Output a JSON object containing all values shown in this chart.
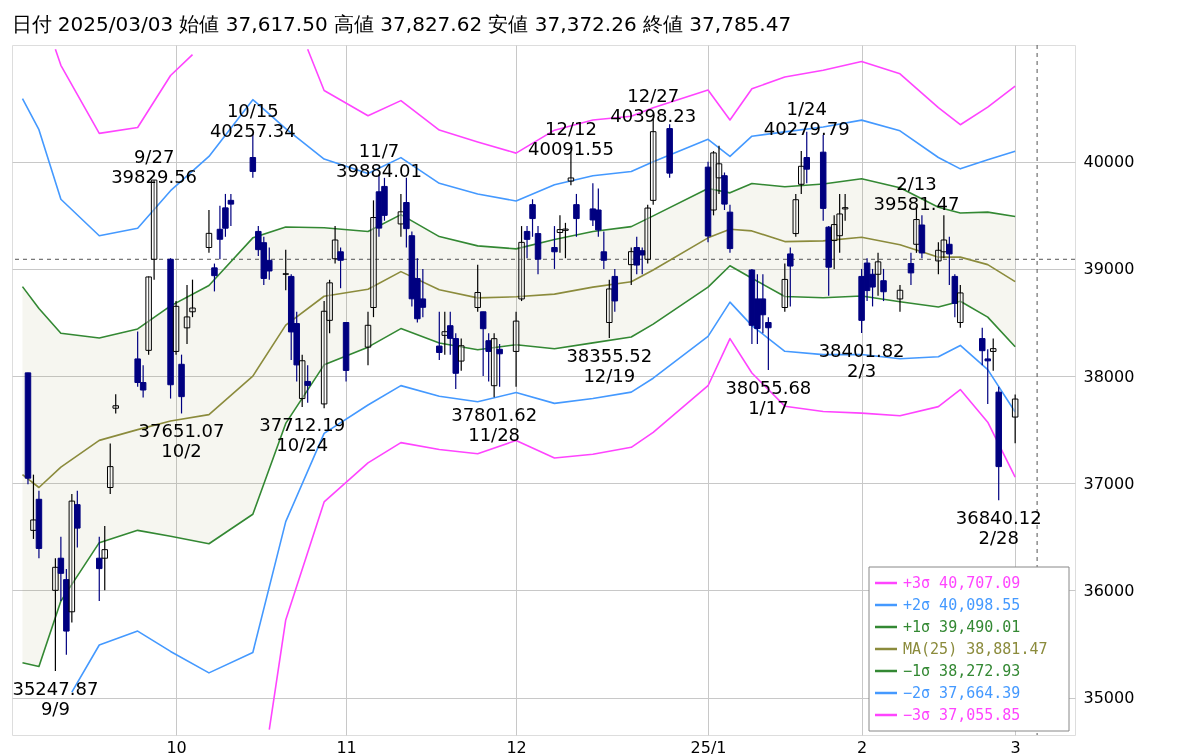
{
  "chart_data": {
    "type": "candlestick",
    "title": "日付 2025/03/03  始値 37,617.50  高値 37,827.62  安値 37,372.26  終値 37,785.47",
    "x": [
      "2024-09-04",
      "2024-09-05",
      "2024-09-06",
      "2024-09-09",
      "2024-09-10",
      "2024-09-11",
      "2024-09-12",
      "2024-09-13",
      "2024-09-17",
      "2024-09-18",
      "2024-09-19",
      "2024-09-20",
      "2024-09-24",
      "2024-09-25",
      "2024-09-26",
      "2024-09-27",
      "2024-09-30",
      "2024-10-01",
      "2024-10-02",
      "2024-10-03",
      "2024-10-04",
      "2024-10-07",
      "2024-10-08",
      "2024-10-09",
      "2024-10-10",
      "2024-10-11",
      "2024-10-15",
      "2024-10-16",
      "2024-10-17",
      "2024-10-18",
      "2024-10-21",
      "2024-10-22",
      "2024-10-23",
      "2024-10-24",
      "2024-10-25",
      "2024-10-28",
      "2024-10-29",
      "2024-10-30",
      "2024-10-31",
      "2024-11-01",
      "2024-11-05",
      "2024-11-06",
      "2024-11-07",
      "2024-11-08",
      "2024-11-11",
      "2024-11-12",
      "2024-11-13",
      "2024-11-14",
      "2024-11-15",
      "2024-11-18",
      "2024-11-19",
      "2024-11-20",
      "2024-11-21",
      "2024-11-22",
      "2024-11-25",
      "2024-11-26",
      "2024-11-27",
      "2024-11-28",
      "2024-11-29",
      "2024-12-02",
      "2024-12-03",
      "2024-12-04",
      "2024-12-05",
      "2024-12-06",
      "2024-12-09",
      "2024-12-10",
      "2024-12-11",
      "2024-12-12",
      "2024-12-13",
      "2024-12-16",
      "2024-12-17",
      "2024-12-18",
      "2024-12-19",
      "2024-12-20",
      "2024-12-23",
      "2024-12-24",
      "2024-12-25",
      "2024-12-26",
      "2024-12-27",
      "2024-12-30",
      "2025-01-06",
      "2025-01-07",
      "2025-01-08",
      "2025-01-09",
      "2025-01-10",
      "2025-01-14",
      "2025-01-15",
      "2025-01-16",
      "2025-01-17",
      "2025-01-20",
      "2025-01-21",
      "2025-01-22",
      "2025-01-23",
      "2025-01-24",
      "2025-01-27",
      "2025-01-28",
      "2025-01-29",
      "2025-01-30",
      "2025-01-31",
      "2025-02-03",
      "2025-02-04",
      "2025-02-05",
      "2025-02-06",
      "2025-02-07",
      "2025-02-10",
      "2025-02-12",
      "2025-02-13",
      "2025-02-14",
      "2025-02-17",
      "2025-02-18",
      "2025-02-19",
      "2025-02-20",
      "2025-02-21",
      "2025-02-25",
      "2025-02-26",
      "2025-02-27",
      "2025-02-28",
      "2025-03-03"
    ],
    "ohlc": [
      [
        38030,
        38030,
        36990,
        37047
      ],
      [
        36560,
        37080,
        36480,
        36657
      ],
      [
        36850,
        36930,
        36300,
        36391
      ],
      [
        36000,
        36300,
        35247.87,
        36215
      ],
      [
        36300,
        36500,
        35900,
        36159
      ],
      [
        36100,
        36200,
        35400,
        35620
      ],
      [
        35800,
        36900,
        35700,
        36833
      ],
      [
        36800,
        36930,
        36400,
        36581
      ],
      [
        36300,
        36500,
        35900,
        36203
      ],
      [
        36300,
        36600,
        36000,
        36380
      ],
      [
        36960,
        37370,
        36900,
        37155
      ],
      [
        37700,
        37830,
        37650,
        37723
      ],
      [
        38160,
        38415,
        37900,
        37940
      ],
      [
        37940,
        38100,
        37800,
        37870
      ],
      [
        38240,
        38930,
        38200,
        38925
      ],
      [
        39090,
        39829.56,
        38900,
        39829.56
      ],
      [
        39090,
        39100,
        37790,
        37919
      ],
      [
        38230,
        38700,
        38200,
        38651
      ],
      [
        38110,
        38200,
        37651.07,
        37808
      ],
      [
        38450,
        38850,
        38300,
        38552
      ],
      [
        38600,
        38900,
        38550,
        38635
      ],
      [
        39200,
        39550,
        39150,
        39332
      ],
      [
        39010,
        39050,
        38790,
        38937
      ],
      [
        39370,
        39590,
        39090,
        39277
      ],
      [
        39570,
        39700,
        39300,
        39380
      ],
      [
        39640,
        39700,
        39400,
        39605
      ],
      [
        40040,
        40257.34,
        39850,
        39910
      ],
      [
        39350,
        39400,
        39120,
        39180
      ],
      [
        39245,
        39300,
        38850,
        38911
      ],
      [
        39080,
        39200,
        38900,
        38981
      ],
      [
        38950,
        39180,
        38800,
        38955
      ],
      [
        38930,
        38950,
        38150,
        38412
      ],
      [
        38490,
        38600,
        37950,
        38104
      ],
      [
        37790,
        38200,
        37712.19,
        38143
      ],
      [
        37950,
        38100,
        37750,
        37913
      ],
      [
        37740,
        38700,
        37700,
        38605
      ],
      [
        38520,
        38900,
        38400,
        38870
      ],
      [
        39095,
        39400,
        39050,
        39270
      ],
      [
        39160,
        39200,
        38820,
        39081
      ],
      [
        38500,
        38500,
        37950,
        38053
      ],
      [
        38270,
        38600,
        38100,
        38474
      ],
      [
        38640,
        39640,
        38550,
        39480
      ],
      [
        39720,
        39884.01,
        39300,
        39381
      ],
      [
        39770,
        39850,
        39450,
        39500
      ],
      [
        39420,
        39700,
        39300,
        39533
      ],
      [
        39620,
        39850,
        39200,
        39376
      ],
      [
        39310,
        39350,
        38650,
        38721
      ],
      [
        38910,
        39100,
        38500,
        38535
      ],
      [
        38720,
        39000,
        38550,
        38642
      ],
      [
        38280,
        38600,
        38150,
        38220
      ],
      [
        38380,
        38600,
        38200,
        38414
      ],
      [
        38470,
        38600,
        38200,
        38352
      ],
      [
        38350,
        38400,
        37880,
        38026
      ],
      [
        38140,
        38350,
        38050,
        38283
      ],
      [
        38640,
        39040,
        38600,
        38780
      ],
      [
        38600,
        38600,
        38000,
        38442
      ],
      [
        38330,
        38400,
        37950,
        38230
      ],
      [
        37910,
        38400,
        37801.62,
        38349
      ],
      [
        38250,
        38300,
        37900,
        38208
      ],
      [
        38230,
        38600,
        37900,
        38513
      ],
      [
        38720,
        39400,
        38700,
        39248
      ],
      [
        39350,
        39400,
        39100,
        39276
      ],
      [
        39600,
        39650,
        39300,
        39470
      ],
      [
        39330,
        39400,
        38950,
        39091
      ],
      [
        39200,
        39400,
        39000,
        39160
      ],
      [
        39340,
        39500,
        39150,
        39367
      ],
      [
        39360,
        39430,
        39100,
        39372
      ],
      [
        39820,
        40091.55,
        39780,
        39849
      ],
      [
        39600,
        39700,
        39300,
        39470
      ],
      [
        39560,
        39800,
        39400,
        39457
      ],
      [
        39550,
        39750,
        39300,
        39364
      ],
      [
        39160,
        39350,
        39000,
        39081
      ],
      [
        38500,
        38900,
        38355.52,
        38813
      ],
      [
        38930,
        39000,
        38600,
        38701
      ],
      [
        39040,
        39200,
        38850,
        39161
      ],
      [
        39200,
        39300,
        38950,
        39036
      ],
      [
        39170,
        39200,
        38950,
        39130
      ],
      [
        39090,
        39600,
        39050,
        39568
      ],
      [
        39640,
        40398.23,
        39600,
        40281
      ],
      [
        40310,
        40350,
        39850,
        39894
      ],
      [
        39950,
        40000,
        39250,
        39307
      ],
      [
        39550,
        40100,
        39500,
        40083
      ],
      [
        39850,
        40150,
        39700,
        39981
      ],
      [
        39870,
        39900,
        39550,
        39605
      ],
      [
        39530,
        39600,
        39150,
        39190
      ],
      [
        38990,
        39000,
        38300,
        38474
      ],
      [
        38720,
        38950,
        38300,
        38444
      ],
      [
        38720,
        38950,
        38400,
        38572
      ],
      [
        38500,
        38550,
        38055.68,
        38451
      ],
      [
        38640,
        39050,
        38600,
        38902
      ],
      [
        39140,
        39200,
        38650,
        39027
      ],
      [
        39330,
        39700,
        39300,
        39646
      ],
      [
        39790,
        40100,
        39700,
        39958
      ],
      [
        40040,
        40279.79,
        39800,
        39931
      ],
      [
        40090,
        40250,
        39450,
        39565
      ],
      [
        39390,
        39400,
        38750,
        39016
      ],
      [
        39265,
        39500,
        39000,
        39414
      ],
      [
        39310,
        39700,
        39150,
        39513
      ],
      [
        39560,
        39700,
        39450,
        39572
      ],
      [
        38930,
        39000,
        38401.82,
        38520
      ],
      [
        39055,
        39100,
        38700,
        38798
      ],
      [
        38950,
        39000,
        38650,
        38831
      ],
      [
        38950,
        39150,
        38750,
        39066
      ],
      [
        38890,
        39000,
        38700,
        38787
      ],
      [
        38720,
        38850,
        38600,
        38801
      ],
      [
        39050,
        39150,
        38850,
        38963
      ],
      [
        39230,
        39581.47,
        39150,
        39461
      ],
      [
        39410,
        39500,
        39100,
        39149
      ],
      [
        39075,
        39250,
        38950,
        39174
      ],
      [
        39160,
        39500,
        39100,
        39270
      ],
      [
        39230,
        39300,
        38850,
        39140
      ],
      [
        38930,
        38950,
        38550,
        38678
      ],
      [
        38500,
        38850,
        38450,
        38776
      ],
      [
        38350,
        38450,
        38100,
        38237
      ],
      [
        38160,
        38250,
        37740,
        38142
      ],
      [
        38230,
        38350,
        38050,
        38256
      ],
      [
        37850,
        37900,
        36840.12,
        37155
      ],
      [
        37617.5,
        37827.62,
        37372.26,
        37785.47
      ]
    ],
    "colors": [
      "#000080",
      "#ffffff",
      "#000080",
      "#ffffff",
      "#000080",
      "#000080",
      "#ffffff",
      "#000080",
      "#000080",
      "#ffffff",
      "#ffffff",
      "#ffffff",
      "#000080",
      "#000080",
      "#ffffff",
      "#ffffff",
      "#000080",
      "#ffffff",
      "#000080",
      "#ffffff",
      "#ffffff",
      "#ffffff",
      "#000080",
      "#000080",
      "#000080",
      "#000080",
      "#000080",
      "#000080",
      "#000080",
      "#000080",
      "#ffffff",
      "#000080",
      "#000080",
      "#ffffff",
      "#000080",
      "#ffffff",
      "#ffffff",
      "#ffffff",
      "#000080",
      "#000080",
      "#ffffff",
      "#ffffff",
      "#000080",
      "#000080",
      "#ffffff",
      "#000080",
      "#000080",
      "#000080",
      "#000080",
      "#000080",
      "#ffffff",
      "#000080",
      "#000080",
      "#ffffff",
      "#ffffff",
      "#000080",
      "#000080",
      "#ffffff",
      "#000080",
      "#ffffff",
      "#ffffff",
      "#000080",
      "#000080",
      "#000080",
      "#000080",
      "#ffffff",
      "#ffffff",
      "#ffffff",
      "#000080",
      "#000080",
      "#000080",
      "#000080",
      "#ffffff",
      "#000080",
      "#ffffff",
      "#000080",
      "#000080",
      "#ffffff",
      "#ffffff",
      "#000080",
      "#000080",
      "#ffffff",
      "#ffffff",
      "#000080",
      "#000080",
      "#000080",
      "#000080",
      "#000080",
      "#000080",
      "#ffffff",
      "#000080",
      "#ffffff",
      "#ffffff",
      "#000080",
      "#000080",
      "#000080",
      "#ffffff",
      "#ffffff",
      "#ffffff",
      "#000080",
      "#000080",
      "#000080",
      "#ffffff",
      "#000080",
      "#ffffff",
      "#000080",
      "#ffffff",
      "#000080",
      "#ffffff",
      "#ffffff",
      "#000080",
      "#000080",
      "#ffffff",
      "#000080",
      "#000080",
      "#ffffff",
      "#000080",
      "#ffffff"
    ],
    "series": [
      {
        "type": "line",
        "name": "+3σ    40,707.09",
        "color": "#ff44ff",
        "x": [
          "2024-09-09",
          "2024-09-10",
          "2024-09-17",
          "2024-09-24",
          "2024-09-30",
          "2024-10-04",
          "2024-10-07",
          "2024-10-15",
          "2024-10-21",
          "2024-10-25",
          "2024-10-28",
          "2024-11-05",
          "2024-11-11",
          "2024-11-18",
          "2024-11-25",
          "2024-12-02",
          "2024-12-09",
          "2024-12-16",
          "2024-12-23",
          "2024-12-27",
          "2025-01-06",
          "2025-01-10",
          "2025-01-14",
          "2025-01-20",
          "2025-01-27",
          "2025-02-03",
          "2025-02-10",
          "2025-02-17",
          "2025-02-21",
          "2025-02-26",
          "2025-03-03"
        ],
        "values": [
          41050,
          40900,
          40265,
          40320,
          40805,
          41000,
          null,
          null,
          null,
          41050,
          40665,
          40430,
          40571,
          40296,
          40185,
          40081,
          40295,
          40390,
          40425,
          40505,
          40670,
          40390,
          40681,
          40791,
          40855,
          40936,
          40821,
          40505,
          40346,
          40510,
          40707.09
        ]
      },
      {
        "type": "line",
        "name": "+2σ    40,098.55",
        "color": "#4499ff",
        "x": [
          "2024-09-03",
          "2024-09-06",
          "2024-09-10",
          "2024-09-17",
          "2024-09-24",
          "2024-09-30",
          "2024-10-07",
          "2024-10-15",
          "2024-10-21",
          "2024-10-28",
          "2024-11-05",
          "2024-11-11",
          "2024-11-18",
          "2024-11-25",
          "2024-12-02",
          "2024-12-09",
          "2024-12-16",
          "2024-12-23",
          "2024-12-27",
          "2025-01-06",
          "2025-01-10",
          "2025-01-14",
          "2025-01-20",
          "2025-01-27",
          "2025-02-03",
          "2025-02-10",
          "2025-02-17",
          "2025-02-21",
          "2025-02-26",
          "2025-03-03"
        ],
        "values": [
          40590,
          40300,
          39650,
          39310,
          39380,
          39730,
          40050,
          40580,
          40309,
          40025,
          39890,
          40039,
          39799,
          39700,
          39634,
          39785,
          39870,
          39910,
          40000,
          40210,
          40050,
          40239,
          40279,
          40324,
          40389,
          40289,
          40040,
          39934,
          40020,
          40098.55
        ]
      },
      {
        "type": "line",
        "name": "+1σ    39,490.01",
        "color": "#338833",
        "x": [
          "2024-09-03",
          "2024-09-06",
          "2024-09-10",
          "2024-09-17",
          "2024-09-24",
          "2024-09-30",
          "2024-10-07",
          "2024-10-15",
          "2024-10-21",
          "2024-10-28",
          "2024-11-05",
          "2024-11-11",
          "2024-11-18",
          "2024-11-25",
          "2024-12-02",
          "2024-12-09",
          "2024-12-16",
          "2024-12-23",
          "2024-12-27",
          "2025-01-06",
          "2025-01-10",
          "2025-01-14",
          "2025-01-20",
          "2025-01-27",
          "2025-02-03",
          "2025-02-10",
          "2025-02-17",
          "2025-02-21",
          "2025-02-26",
          "2025-03-03"
        ],
        "values": [
          38835,
          38630,
          38400,
          38355,
          38440,
          38655,
          38845,
          39290,
          39392,
          39385,
          39350,
          39507,
          39302,
          39215,
          39187,
          39275,
          39350,
          39395,
          39495,
          39750,
          39710,
          39797,
          39767,
          39793,
          39842,
          39757,
          39575,
          39522,
          39530,
          39490.01
        ]
      },
      {
        "type": "line",
        "name": "MA(25) 38,881.47",
        "color": "#8b8b3c",
        "x": [
          "2024-09-03",
          "2024-09-06",
          "2024-09-10",
          "2024-09-17",
          "2024-09-24",
          "2024-09-30",
          "2024-10-07",
          "2024-10-15",
          "2024-10-21",
          "2024-10-28",
          "2024-11-05",
          "2024-11-11",
          "2024-11-18",
          "2024-11-25",
          "2024-12-02",
          "2024-12-09",
          "2024-12-16",
          "2024-12-23",
          "2024-12-27",
          "2025-01-06",
          "2025-01-10",
          "2025-01-14",
          "2025-01-20",
          "2025-01-27",
          "2025-02-03",
          "2025-02-10",
          "2025-02-17",
          "2025-02-21",
          "2025-02-26",
          "2025-03-03"
        ],
        "values": [
          37080,
          36960,
          37150,
          37400,
          37500,
          37580,
          37640,
          38000,
          38475,
          38745,
          38810,
          38975,
          38805,
          38730,
          38740,
          38765,
          38830,
          38880,
          38990,
          39290,
          39370,
          39355,
          39255,
          39262,
          39295,
          39225,
          39110,
          39110,
          39040,
          38881.47
        ],
        "lower": [
          35325,
          35290,
          35900,
          36445,
          36560,
          36505,
          36435,
          36710,
          37558,
          38105,
          38270,
          38443,
          38308,
          38245,
          38293,
          38255,
          38310,
          38365,
          38485,
          38830,
          39030,
          38913,
          38743,
          38731,
          38748,
          38693,
          38645,
          38698,
          38550,
          38272.93
        ],
        "upper": [
          38835,
          38630,
          38400,
          38355,
          38440,
          38655,
          38845,
          39290,
          39392,
          39385,
          39350,
          39507,
          39302,
          39215,
          39187,
          39275,
          39350,
          39395,
          39495,
          39750,
          39710,
          39797,
          39767,
          39793,
          39842,
          39757,
          39575,
          39522,
          39530,
          39490.01
        ]
      },
      {
        "type": "line",
        "name": "−1σ    38,272.93",
        "color": "#338833",
        "x": [
          "2024-09-03",
          "2024-09-06",
          "2024-09-10",
          "2024-09-17",
          "2024-09-24",
          "2024-09-30",
          "2024-10-07",
          "2024-10-15",
          "2024-10-21",
          "2024-10-28",
          "2024-11-05",
          "2024-11-11",
          "2024-11-18",
          "2024-11-25",
          "2024-12-02",
          "2024-12-09",
          "2024-12-16",
          "2024-12-23",
          "2024-12-27",
          "2025-01-06",
          "2025-01-10",
          "2025-01-14",
          "2025-01-20",
          "2025-01-27",
          "2025-02-03",
          "2025-02-10",
          "2025-02-17",
          "2025-02-21",
          "2025-02-26",
          "2025-03-03"
        ],
        "values": [
          35325,
          35290,
          35900,
          36445,
          36560,
          36505,
          36435,
          36710,
          37558,
          38105,
          38270,
          38443,
          38308,
          38245,
          38293,
          38255,
          38310,
          38365,
          38485,
          38830,
          39030,
          38913,
          38743,
          38731,
          38748,
          38693,
          38645,
          38698,
          38550,
          38272.93
        ]
      },
      {
        "type": "line",
        "name": "−2σ    37,664.39",
        "color": "#4499ff",
        "x": [
          "2024-09-12",
          "2024-09-17",
          "2024-09-24",
          "2024-09-30",
          "2024-10-07",
          "2024-10-15",
          "2024-10-21",
          "2024-10-28",
          "2024-11-05",
          "2024-11-11",
          "2024-11-18",
          "2024-11-25",
          "2024-12-02",
          "2024-12-09",
          "2024-12-16",
          "2024-12-23",
          "2024-12-27",
          "2025-01-06",
          "2025-01-10",
          "2025-01-14",
          "2025-01-20",
          "2025-01-27",
          "2025-02-03",
          "2025-02-10",
          "2025-02-17",
          "2025-02-21",
          "2025-02-26",
          "2025-03-03"
        ],
        "values": [
          35050,
          35490,
          35620,
          35430,
          35230,
          35420,
          36641,
          37465,
          37730,
          37911,
          37811,
          37760,
          37846,
          37745,
          37790,
          37850,
          37980,
          38370,
          38690,
          38471,
          38231,
          38200,
          38201,
          38161,
          38180,
          38286,
          38060,
          37664.39
        ]
      },
      {
        "type": "line",
        "name": "−3σ    37,055.85",
        "color": "#ff44ff",
        "x": [
          "2024-10-18",
          "2024-10-21",
          "2024-10-28",
          "2024-11-05",
          "2024-11-11",
          "2024-11-18",
          "2024-11-25",
          "2024-12-02",
          "2024-12-09",
          "2024-12-16",
          "2024-12-23",
          "2024-12-27",
          "2025-01-06",
          "2025-01-10",
          "2025-01-14",
          "2025-01-20",
          "2025-01-27",
          "2025-02-03",
          "2025-02-10",
          "2025-02-17",
          "2025-02-21",
          "2025-02-26",
          "2025-03-03"
        ],
        "values": [
          34700,
          35724,
          36825,
          37190,
          37379,
          37314,
          37275,
          37399,
          37235,
          37270,
          37335,
          37475,
          37910,
          38350,
          38029,
          37719,
          37669,
          37654,
          37629,
          37715,
          37874,
          37570,
          37055.85
        ]
      }
    ],
    "annotations": [
      {
        "text": "9/27\n39829.56",
        "x": "2024-09-27",
        "y": 39829.56
      },
      {
        "text": "10/15\n40257.34",
        "x": "2024-10-15",
        "y": 40257.34
      },
      {
        "text": "11/7\n39884.01",
        "x": "2024-11-07",
        "y": 39884.01
      },
      {
        "text": "12/12\n40091.55",
        "x": "2024-12-12",
        "y": 40091.55
      },
      {
        "text": "12/27\n40398.23",
        "x": "2024-12-27",
        "y": 40398.23
      },
      {
        "text": "1/24\n40279.79",
        "x": "2025-01-24",
        "y": 40279.79
      },
      {
        "text": "2/13\n39581.47",
        "x": "2025-02-13",
        "y": 39581.47
      },
      {
        "text": "35247.87\n9/9",
        "x": "2024-09-09",
        "y": 35247.87
      },
      {
        "text": "37651.07\n10/2",
        "x": "2024-10-02",
        "y": 37651.07
      },
      {
        "text": "37712.19\n10/24",
        "x": "2024-10-24",
        "y": 37712.19
      },
      {
        "text": "37801.62\n11/28",
        "x": "2024-11-28",
        "y": 37801.62
      },
      {
        "text": "38355.52\n12/19",
        "x": "2024-12-19",
        "y": 38355.52
      },
      {
        "text": "38055.68\n1/17",
        "x": "2025-01-17",
        "y": 38055.68
      },
      {
        "text": "38401.82\n2/3",
        "x": "2025-02-03",
        "y": 38401.82
      },
      {
        "text": "36840.12\n2/28",
        "x": "2025-02-28",
        "y": 36840.12
      }
    ],
    "ref_lines": [
      {
        "axis": "y",
        "value": 39090,
        "line_style": "dashed",
        "color": "#555555"
      },
      {
        "axis": "x",
        "value": "2025-03-07",
        "line_style": "dashed",
        "color": "#555555"
      }
    ],
    "xlim": [
      "2024-09-02",
      "2025-03-13"
    ],
    "xticks": [
      {
        "value": "2024-10-01",
        "label": "10"
      },
      {
        "value": "2024-11-01",
        "label": "11"
      },
      {
        "value": "2024-12-02",
        "label": "12"
      },
      {
        "value": "2025-01-06",
        "label": "25/1"
      },
      {
        "value": "2025-02-03",
        "label": "2"
      },
      {
        "value": "2025-03-03",
        "label": "3"
      }
    ],
    "ylim": [
      34650,
      41090
    ],
    "yticks": [
      35000,
      36000,
      37000,
      38000,
      39000,
      40000
    ],
    "grid": true,
    "legend": "bottom right"
  }
}
